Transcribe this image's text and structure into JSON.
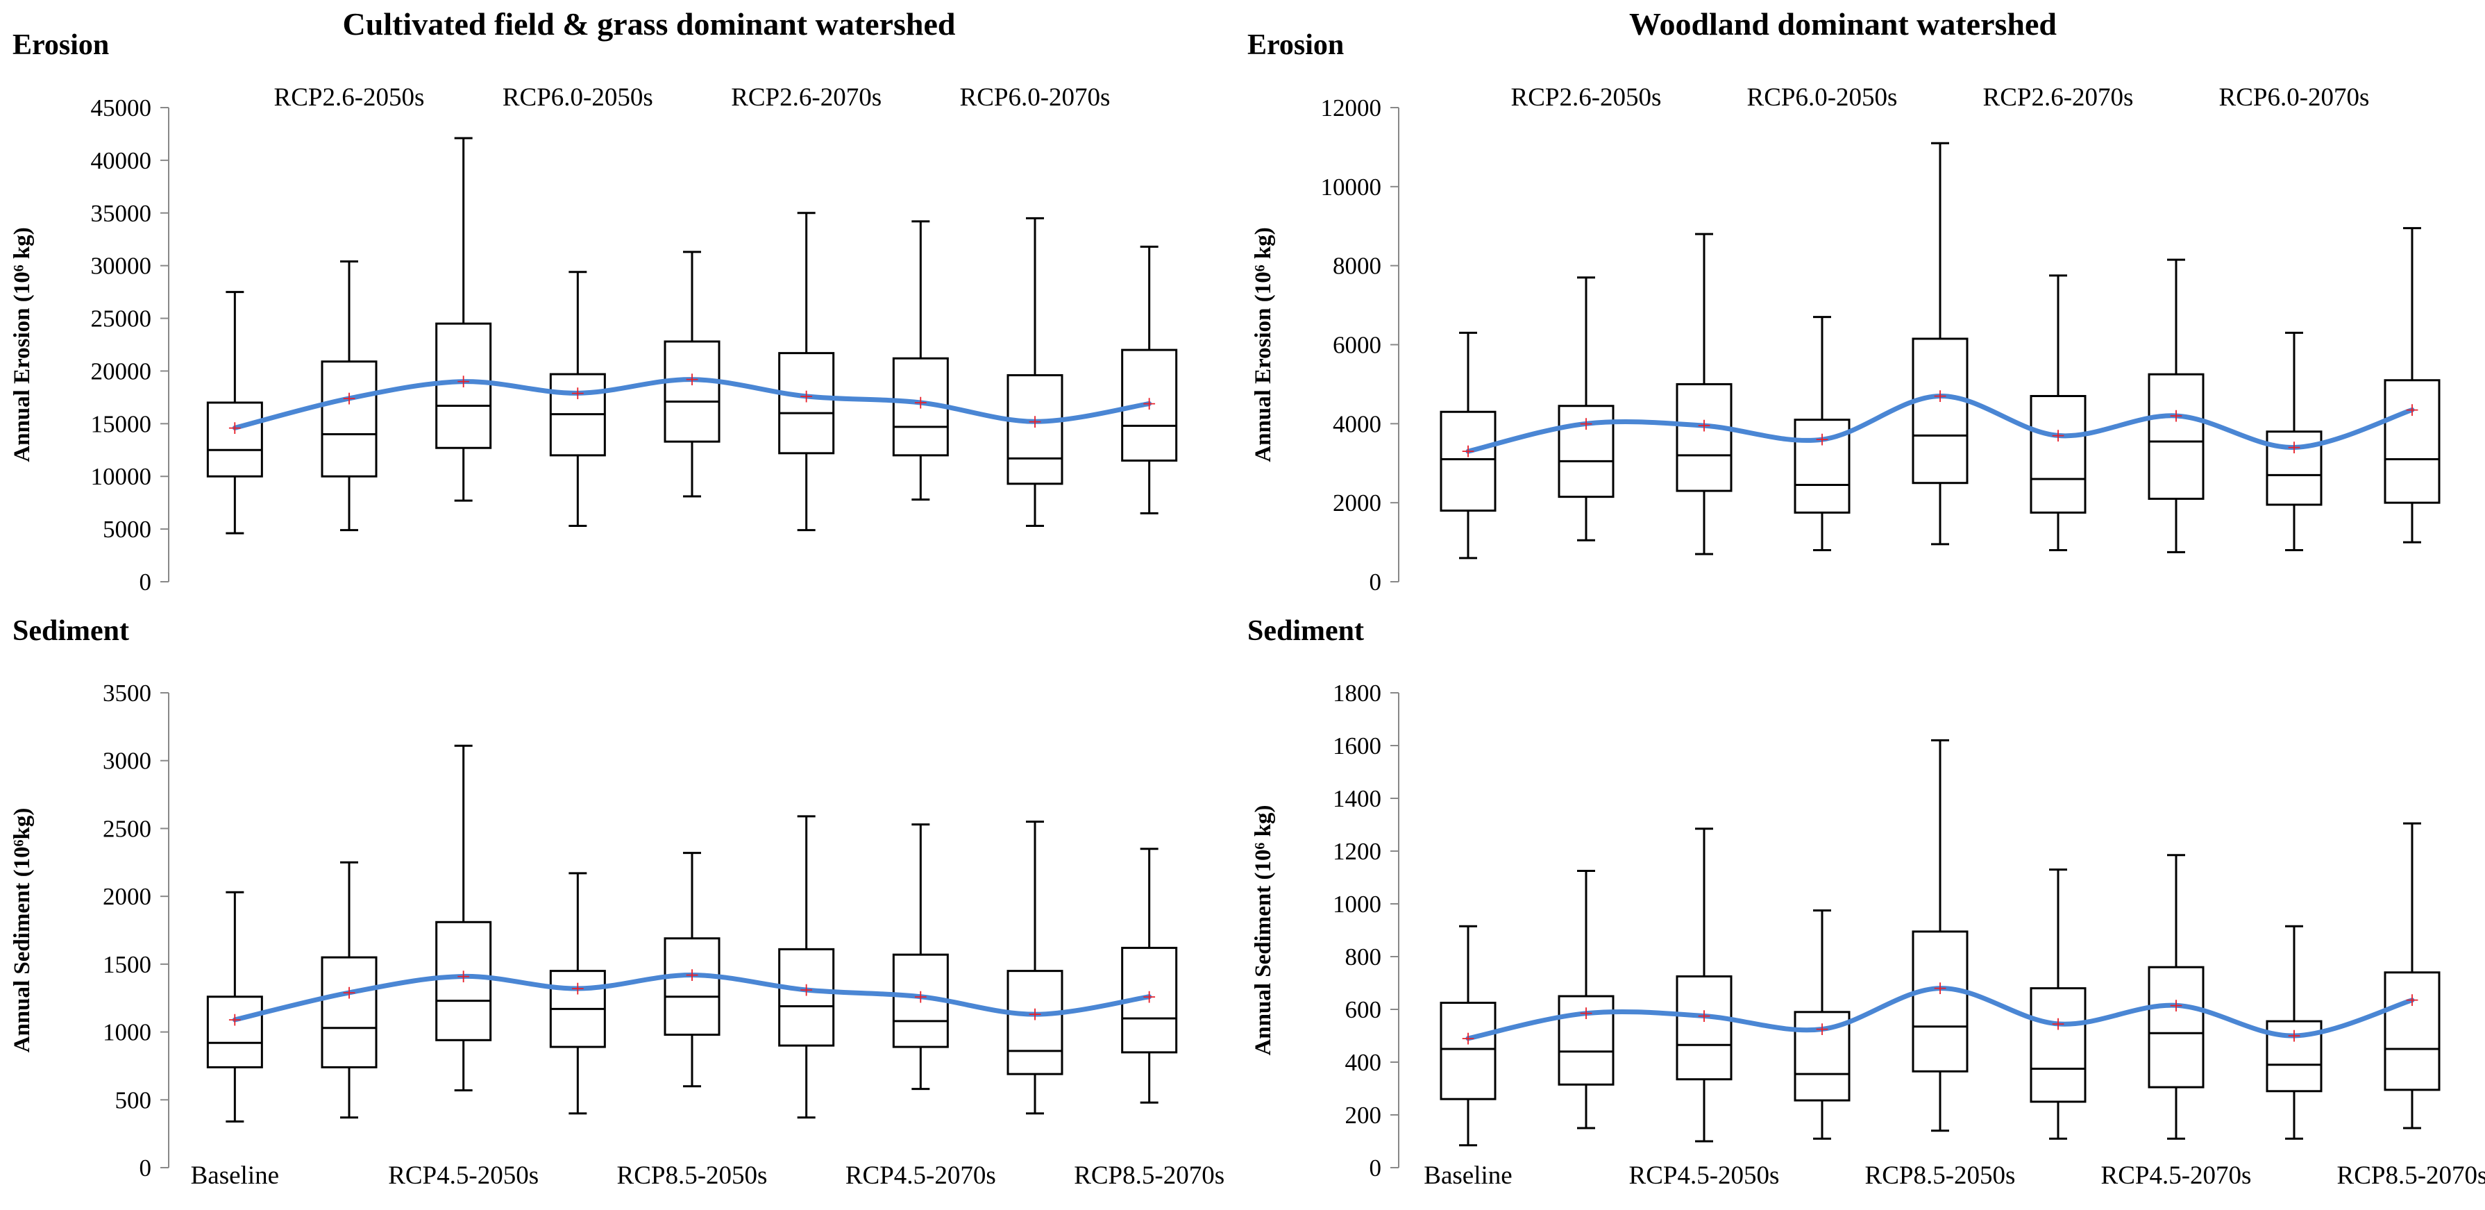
{
  "column_titles": [
    "Cultivated field & grass dominant watershed",
    "Woodland dominant watershed"
  ],
  "colors": {
    "box": "#000000",
    "mean_line": "#4a86d4",
    "mean_marker": "#e8202a"
  },
  "legend_marker": "+",
  "chart_data": [
    {
      "type": "box",
      "panel_label": "Erosion",
      "ylabel": "Annual Erosion (10⁶ kg)",
      "ylim": [
        0,
        45000
      ],
      "yticks": [
        0,
        5000,
        10000,
        15000,
        20000,
        25000,
        30000,
        35000,
        40000,
        45000
      ],
      "categories": [
        "Baseline",
        "RCP2.6-2050s",
        "RCP4.5-2050s",
        "RCP6.0-2050s",
        "RCP8.5-2050s",
        "RCP2.6-2070s",
        "RCP4.5-2070s",
        "RCP6.0-2070s",
        "RCP8.5-2070s"
      ],
      "category_labels_shown": [
        1,
        3,
        5,
        7
      ],
      "whisker_min": [
        4600,
        4900,
        7700,
        5300,
        8100,
        4900,
        7800,
        5300,
        6500
      ],
      "q1": [
        10000,
        10000,
        12700,
        12000,
        13300,
        12200,
        12000,
        9300,
        11500
      ],
      "median": [
        12500,
        14000,
        16700,
        15900,
        17100,
        16000,
        14700,
        11700,
        14800
      ],
      "q3": [
        17000,
        20900,
        24500,
        19700,
        22800,
        21700,
        21200,
        19600,
        22000
      ],
      "whisker_max": [
        27500,
        30400,
        42100,
        29400,
        31300,
        35000,
        34200,
        34500,
        31800
      ],
      "mean": [
        14600,
        17400,
        19000,
        17900,
        19200,
        17600,
        17000,
        15200,
        16900
      ]
    },
    {
      "type": "box",
      "panel_label": "Erosion",
      "ylabel": "Annual Erosion (10⁶ kg)",
      "ylim": [
        0,
        12000
      ],
      "yticks": [
        0,
        2000,
        4000,
        6000,
        8000,
        10000,
        12000
      ],
      "categories": [
        "Baseline",
        "RCP2.6-2050s",
        "RCP4.5-2050s",
        "RCP6.0-2050s",
        "RCP8.5-2050s",
        "RCP2.6-2070s",
        "RCP4.5-2070s",
        "RCP6.0-2070s",
        "RCP8.5-2070s"
      ],
      "category_labels_shown": [
        1,
        3,
        5,
        7
      ],
      "whisker_min": [
        600,
        1050,
        700,
        800,
        950,
        800,
        750,
        800,
        1000
      ],
      "q1": [
        1800,
        2150,
        2300,
        1750,
        2500,
        1750,
        2100,
        1950,
        2000
      ],
      "median": [
        3100,
        3050,
        3200,
        2450,
        3700,
        2600,
        3550,
        2700,
        3100
      ],
      "q3": [
        4300,
        4450,
        5000,
        4100,
        6150,
        4700,
        5250,
        3800,
        5100
      ],
      "whisker_max": [
        6300,
        7700,
        8800,
        6700,
        11100,
        7750,
        8150,
        6300,
        8950
      ],
      "mean": [
        3300,
        4000,
        3950,
        3600,
        4700,
        3700,
        4200,
        3400,
        4350
      ]
    },
    {
      "type": "box",
      "panel_label": "Sediment",
      "ylabel": "Annual Sediment (10⁶kg)",
      "ylim": [
        0,
        3500
      ],
      "yticks": [
        0,
        500,
        1000,
        1500,
        2000,
        2500,
        3000,
        3500
      ],
      "categories": [
        "Baseline",
        "RCP2.6-2050s",
        "RCP4.5-2050s",
        "RCP6.0-2050s",
        "RCP8.5-2050s",
        "RCP2.6-2070s",
        "RCP4.5-2070s",
        "RCP6.0-2070s",
        "RCP8.5-2070s"
      ],
      "category_labels_shown": [
        0,
        2,
        4,
        6,
        8
      ],
      "whisker_min": [
        340,
        370,
        570,
        400,
        600,
        370,
        580,
        400,
        480
      ],
      "q1": [
        740,
        740,
        940,
        890,
        980,
        900,
        890,
        690,
        850
      ],
      "median": [
        920,
        1030,
        1230,
        1170,
        1260,
        1190,
        1080,
        860,
        1100
      ],
      "q3": [
        1260,
        1550,
        1810,
        1450,
        1690,
        1610,
        1570,
        1450,
        1620
      ],
      "whisker_max": [
        2030,
        2250,
        3110,
        2170,
        2320,
        2590,
        2530,
        2550,
        2350
      ],
      "mean": [
        1090,
        1290,
        1410,
        1320,
        1420,
        1310,
        1260,
        1130,
        1260
      ]
    },
    {
      "type": "box",
      "panel_label": "Sediment",
      "ylabel": "Annual Sediment (10⁶ kg)",
      "ylim": [
        0,
        1800
      ],
      "yticks": [
        0,
        200,
        400,
        600,
        800,
        1000,
        1200,
        1400,
        1600,
        1800
      ],
      "categories": [
        "Baseline",
        "RCP2.6-2050s",
        "RCP4.5-2050s",
        "RCP6.0-2050s",
        "RCP8.5-2050s",
        "RCP2.6-2070s",
        "RCP4.5-2070s",
        "RCP6.0-2070s",
        "RCP8.5-2070s"
      ],
      "category_labels_shown": [
        0,
        2,
        4,
        6,
        8
      ],
      "whisker_min": [
        85,
        150,
        100,
        110,
        140,
        110,
        110,
        110,
        150
      ],
      "q1": [
        260,
        315,
        335,
        255,
        365,
        250,
        305,
        290,
        295
      ],
      "median": [
        450,
        440,
        465,
        355,
        535,
        375,
        510,
        390,
        450
      ],
      "q3": [
        625,
        650,
        725,
        590,
        895,
        680,
        760,
        555,
        740
      ],
      "whisker_max": [
        915,
        1125,
        1285,
        975,
        1620,
        1130,
        1185,
        915,
        1305
      ],
      "mean": [
        490,
        585,
        575,
        525,
        680,
        545,
        615,
        500,
        635
      ]
    }
  ]
}
